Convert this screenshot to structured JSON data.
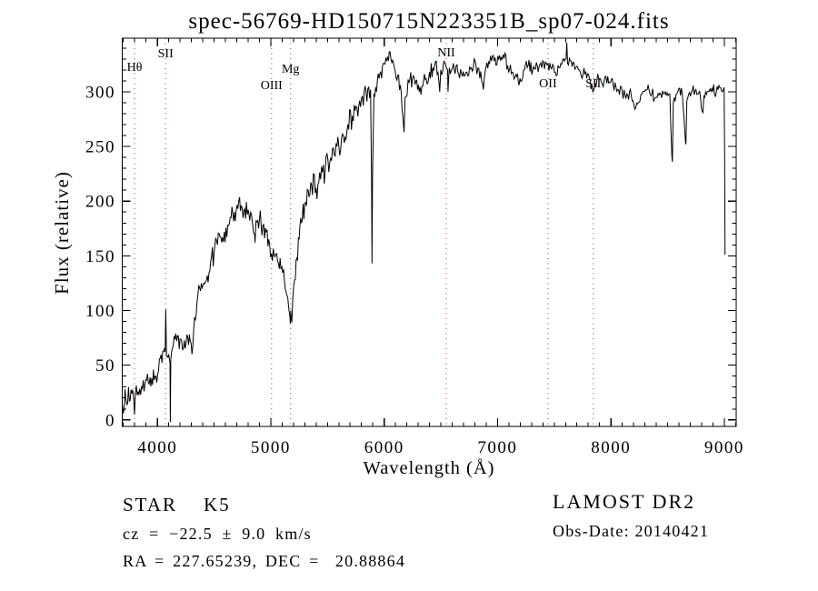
{
  "title": "spec-56769-HD150715N223351B_sp07-024.fits",
  "annotations": {
    "star_class": "STAR    K5",
    "cz": "cz = −22.5 ± 9.0 km/s",
    "ra_dec": "RA = 227.65239, DEC =  20.88864",
    "survey": "LAMOST DR2",
    "obs_date": "Obs-Date: 20140421"
  },
  "chart_data": {
    "type": "line",
    "title": "spec-56769-HD150715N223351B_sp07-024.fits",
    "xlabel": "Wavelength (Å)",
    "ylabel": "Flux (relative)",
    "xlim": [
      3690,
      9105
    ],
    "ylim": [
      -6,
      349
    ],
    "xticks": [
      4000,
      5000,
      6000,
      7000,
      8000,
      9000
    ],
    "yticks": [
      0,
      50,
      100,
      150,
      200,
      250,
      300
    ],
    "x_minor_step": 100,
    "y_minor_step": 10,
    "grid": false,
    "legend": "none",
    "line_color": "#000000",
    "marker_line_color": "#b23535",
    "spectral_lines": [
      {
        "label": "Hθ",
        "wavelength": 3798,
        "label_y": 73
      },
      {
        "label": "SII",
        "wavelength": 4072,
        "label_y": 58
      },
      {
        "label": "OIII",
        "wavelength": 5007,
        "label_y": 93
      },
      {
        "label": "Mg",
        "wavelength": 5175,
        "label_y": 75
      },
      {
        "label": "NII",
        "wavelength": 6548,
        "label_y": 57
      },
      {
        "label": "OII",
        "wavelength": 7445,
        "label_y": 91
      },
      {
        "label": "SII",
        "wavelength": 7845,
        "label_y": 91
      }
    ],
    "series": [
      {
        "name": "spectrum",
        "sample_step": 8,
        "noise_seed": 20140421,
        "envelope_points": [
          [
            3690,
            15,
            12
          ],
          [
            3700,
            6,
            10
          ],
          [
            3715,
            28,
            10
          ],
          [
            3730,
            14,
            10
          ],
          [
            3745,
            30,
            9
          ],
          [
            3760,
            18,
            9
          ],
          [
            3775,
            24,
            8
          ],
          [
            3790,
            20,
            6
          ],
          [
            3798,
            5,
            4
          ],
          [
            3806,
            24,
            8
          ],
          [
            3830,
            26,
            9
          ],
          [
            3860,
            30,
            9
          ],
          [
            3890,
            32,
            9
          ],
          [
            3920,
            34,
            10
          ],
          [
            3950,
            38,
            10
          ],
          [
            3980,
            40,
            10
          ],
          [
            4010,
            45,
            10
          ],
          [
            4040,
            52,
            10
          ],
          [
            4068,
            62,
            6
          ],
          [
            4074,
            101,
            2
          ],
          [
            4080,
            58,
            6
          ],
          [
            4100,
            60,
            5
          ],
          [
            4111,
            52,
            2
          ],
          [
            4114,
            -2,
            2
          ],
          [
            4118,
            55,
            5
          ],
          [
            4140,
            68,
            9
          ],
          [
            4170,
            72,
            9
          ],
          [
            4200,
            74,
            9
          ],
          [
            4230,
            66,
            9
          ],
          [
            4260,
            78,
            9
          ],
          [
            4290,
            72,
            9
          ],
          [
            4305,
            60,
            7
          ],
          [
            4320,
            82,
            9
          ],
          [
            4350,
            108,
            11
          ],
          [
            4380,
            118,
            11
          ],
          [
            4410,
            125,
            11
          ],
          [
            4440,
            132,
            11
          ],
          [
            4470,
            145,
            11
          ],
          [
            4500,
            152,
            11
          ],
          [
            4530,
            160,
            11
          ],
          [
            4560,
            167,
            11
          ],
          [
            4590,
            172,
            11
          ],
          [
            4620,
            178,
            11
          ],
          [
            4650,
            185,
            11
          ],
          [
            4680,
            190,
            11
          ],
          [
            4710,
            193,
            11
          ],
          [
            4740,
            196,
            11
          ],
          [
            4770,
            193,
            11
          ],
          [
            4800,
            192,
            11
          ],
          [
            4830,
            188,
            10
          ],
          [
            4857,
            170,
            6
          ],
          [
            4861,
            162,
            4
          ],
          [
            4870,
            182,
            10
          ],
          [
            4900,
            183,
            11
          ],
          [
            4930,
            178,
            11
          ],
          [
            4960,
            172,
            11
          ],
          [
            4990,
            160,
            10
          ],
          [
            5007,
            152,
            9
          ],
          [
            5030,
            150,
            9
          ],
          [
            5060,
            145,
            9
          ],
          [
            5090,
            138,
            9
          ],
          [
            5120,
            128,
            9
          ],
          [
            5150,
            112,
            8
          ],
          [
            5168,
            95,
            5
          ],
          [
            5172,
            88,
            3
          ],
          [
            5176,
            100,
            4
          ],
          [
            5180,
            92,
            4
          ],
          [
            5186,
            89,
            3
          ],
          [
            5195,
            112,
            8
          ],
          [
            5210,
            128,
            9
          ],
          [
            5230,
            148,
            10
          ],
          [
            5250,
            165,
            10
          ],
          [
            5270,
            180,
            11
          ],
          [
            5300,
            198,
            11
          ],
          [
            5330,
            210,
            12
          ],
          [
            5360,
            215,
            12
          ],
          [
            5400,
            212,
            12
          ],
          [
            5440,
            220,
            12
          ],
          [
            5480,
            228,
            13
          ],
          [
            5520,
            235,
            13
          ],
          [
            5560,
            242,
            13
          ],
          [
            5600,
            250,
            13
          ],
          [
            5640,
            260,
            13
          ],
          [
            5680,
            270,
            13
          ],
          [
            5720,
            278,
            12
          ],
          [
            5760,
            286,
            12
          ],
          [
            5800,
            294,
            11
          ],
          [
            5840,
            300,
            10
          ],
          [
            5880,
            302,
            6
          ],
          [
            5889,
            220,
            3
          ],
          [
            5893,
            143,
            2
          ],
          [
            5898,
            225,
            3
          ],
          [
            5910,
            298,
            8
          ],
          [
            5940,
            310,
            9
          ],
          [
            5970,
            318,
            9
          ],
          [
            6000,
            326,
            8
          ],
          [
            6030,
            332,
            7
          ],
          [
            6060,
            330,
            8
          ],
          [
            6090,
            322,
            8
          ],
          [
            6120,
            315,
            8
          ],
          [
            6150,
            300,
            7
          ],
          [
            6172,
            268,
            4
          ],
          [
            6176,
            263,
            3
          ],
          [
            6185,
            295,
            7
          ],
          [
            6220,
            308,
            8
          ],
          [
            6250,
            312,
            8
          ],
          [
            6280,
            310,
            8
          ],
          [
            6310,
            300,
            8
          ],
          [
            6340,
            305,
            8
          ],
          [
            6370,
            312,
            8
          ],
          [
            6400,
            318,
            8
          ],
          [
            6430,
            322,
            8
          ],
          [
            6460,
            328,
            7
          ],
          [
            6490,
            300,
            5
          ],
          [
            6500,
            320,
            7
          ],
          [
            6530,
            328,
            7
          ],
          [
            6560,
            320,
            6
          ],
          [
            6563,
            300,
            4
          ],
          [
            6575,
            322,
            7
          ],
          [
            6610,
            326,
            7
          ],
          [
            6650,
            318,
            7
          ],
          [
            6690,
            314,
            7
          ],
          [
            6730,
            318,
            7
          ],
          [
            6770,
            322,
            7
          ],
          [
            6810,
            324,
            7
          ],
          [
            6860,
            310,
            5
          ],
          [
            6875,
            302,
            4
          ],
          [
            6890,
            318,
            6
          ],
          [
            6930,
            326,
            7
          ],
          [
            6970,
            328,
            7
          ],
          [
            7010,
            330,
            7
          ],
          [
            7050,
            334,
            6
          ],
          [
            7090,
            324,
            7
          ],
          [
            7130,
            318,
            6
          ],
          [
            7170,
            314,
            6
          ],
          [
            7190,
            306,
            5
          ],
          [
            7230,
            320,
            6
          ],
          [
            7270,
            324,
            6
          ],
          [
            7310,
            320,
            6
          ],
          [
            7350,
            324,
            6
          ],
          [
            7390,
            322,
            6
          ],
          [
            7430,
            326,
            6
          ],
          [
            7470,
            322,
            6
          ],
          [
            7510,
            318,
            6
          ],
          [
            7550,
            322,
            6
          ],
          [
            7590,
            328,
            5
          ],
          [
            7605,
            330,
            3
          ],
          [
            7611,
            345,
            2
          ],
          [
            7618,
            326,
            4
          ],
          [
            7650,
            328,
            6
          ],
          [
            7690,
            322,
            6
          ],
          [
            7730,
            318,
            6
          ],
          [
            7770,
            316,
            6
          ],
          [
            7810,
            312,
            6
          ],
          [
            7840,
            300,
            5
          ],
          [
            7860,
            308,
            6
          ],
          [
            7900,
            312,
            6
          ],
          [
            7940,
            310,
            6
          ],
          [
            7980,
            308,
            6
          ],
          [
            8020,
            306,
            6
          ],
          [
            8060,
            302,
            6
          ],
          [
            8100,
            300,
            6
          ],
          [
            8140,
            298,
            6
          ],
          [
            8180,
            296,
            6
          ],
          [
            8220,
            286,
            5
          ],
          [
            8240,
            290,
            5
          ],
          [
            8280,
            300,
            6
          ],
          [
            8320,
            302,
            6
          ],
          [
            8360,
            298,
            6
          ],
          [
            8400,
            295,
            6
          ],
          [
            8440,
            298,
            6
          ],
          [
            8480,
            300,
            5
          ],
          [
            8520,
            298,
            4
          ],
          [
            8538,
            240,
            2
          ],
          [
            8542,
            236,
            2
          ],
          [
            8550,
            290,
            4
          ],
          [
            8590,
            300,
            5
          ],
          [
            8630,
            298,
            4
          ],
          [
            8658,
            254,
            2
          ],
          [
            8662,
            252,
            2
          ],
          [
            8670,
            292,
            4
          ],
          [
            8710,
            300,
            5
          ],
          [
            8750,
            302,
            5
          ],
          [
            8790,
            295,
            4
          ],
          [
            8806,
            282,
            2
          ],
          [
            8812,
            281,
            2
          ],
          [
            8820,
            296,
            4
          ],
          [
            8850,
            300,
            5
          ],
          [
            8890,
            303,
            5
          ],
          [
            8930,
            300,
            5
          ],
          [
            8960,
            304,
            4
          ],
          [
            8985,
            300,
            3
          ],
          [
            8998,
            304,
            2
          ],
          [
            9003,
            240,
            1
          ],
          [
            9006,
            151,
            0
          ]
        ]
      }
    ]
  }
}
